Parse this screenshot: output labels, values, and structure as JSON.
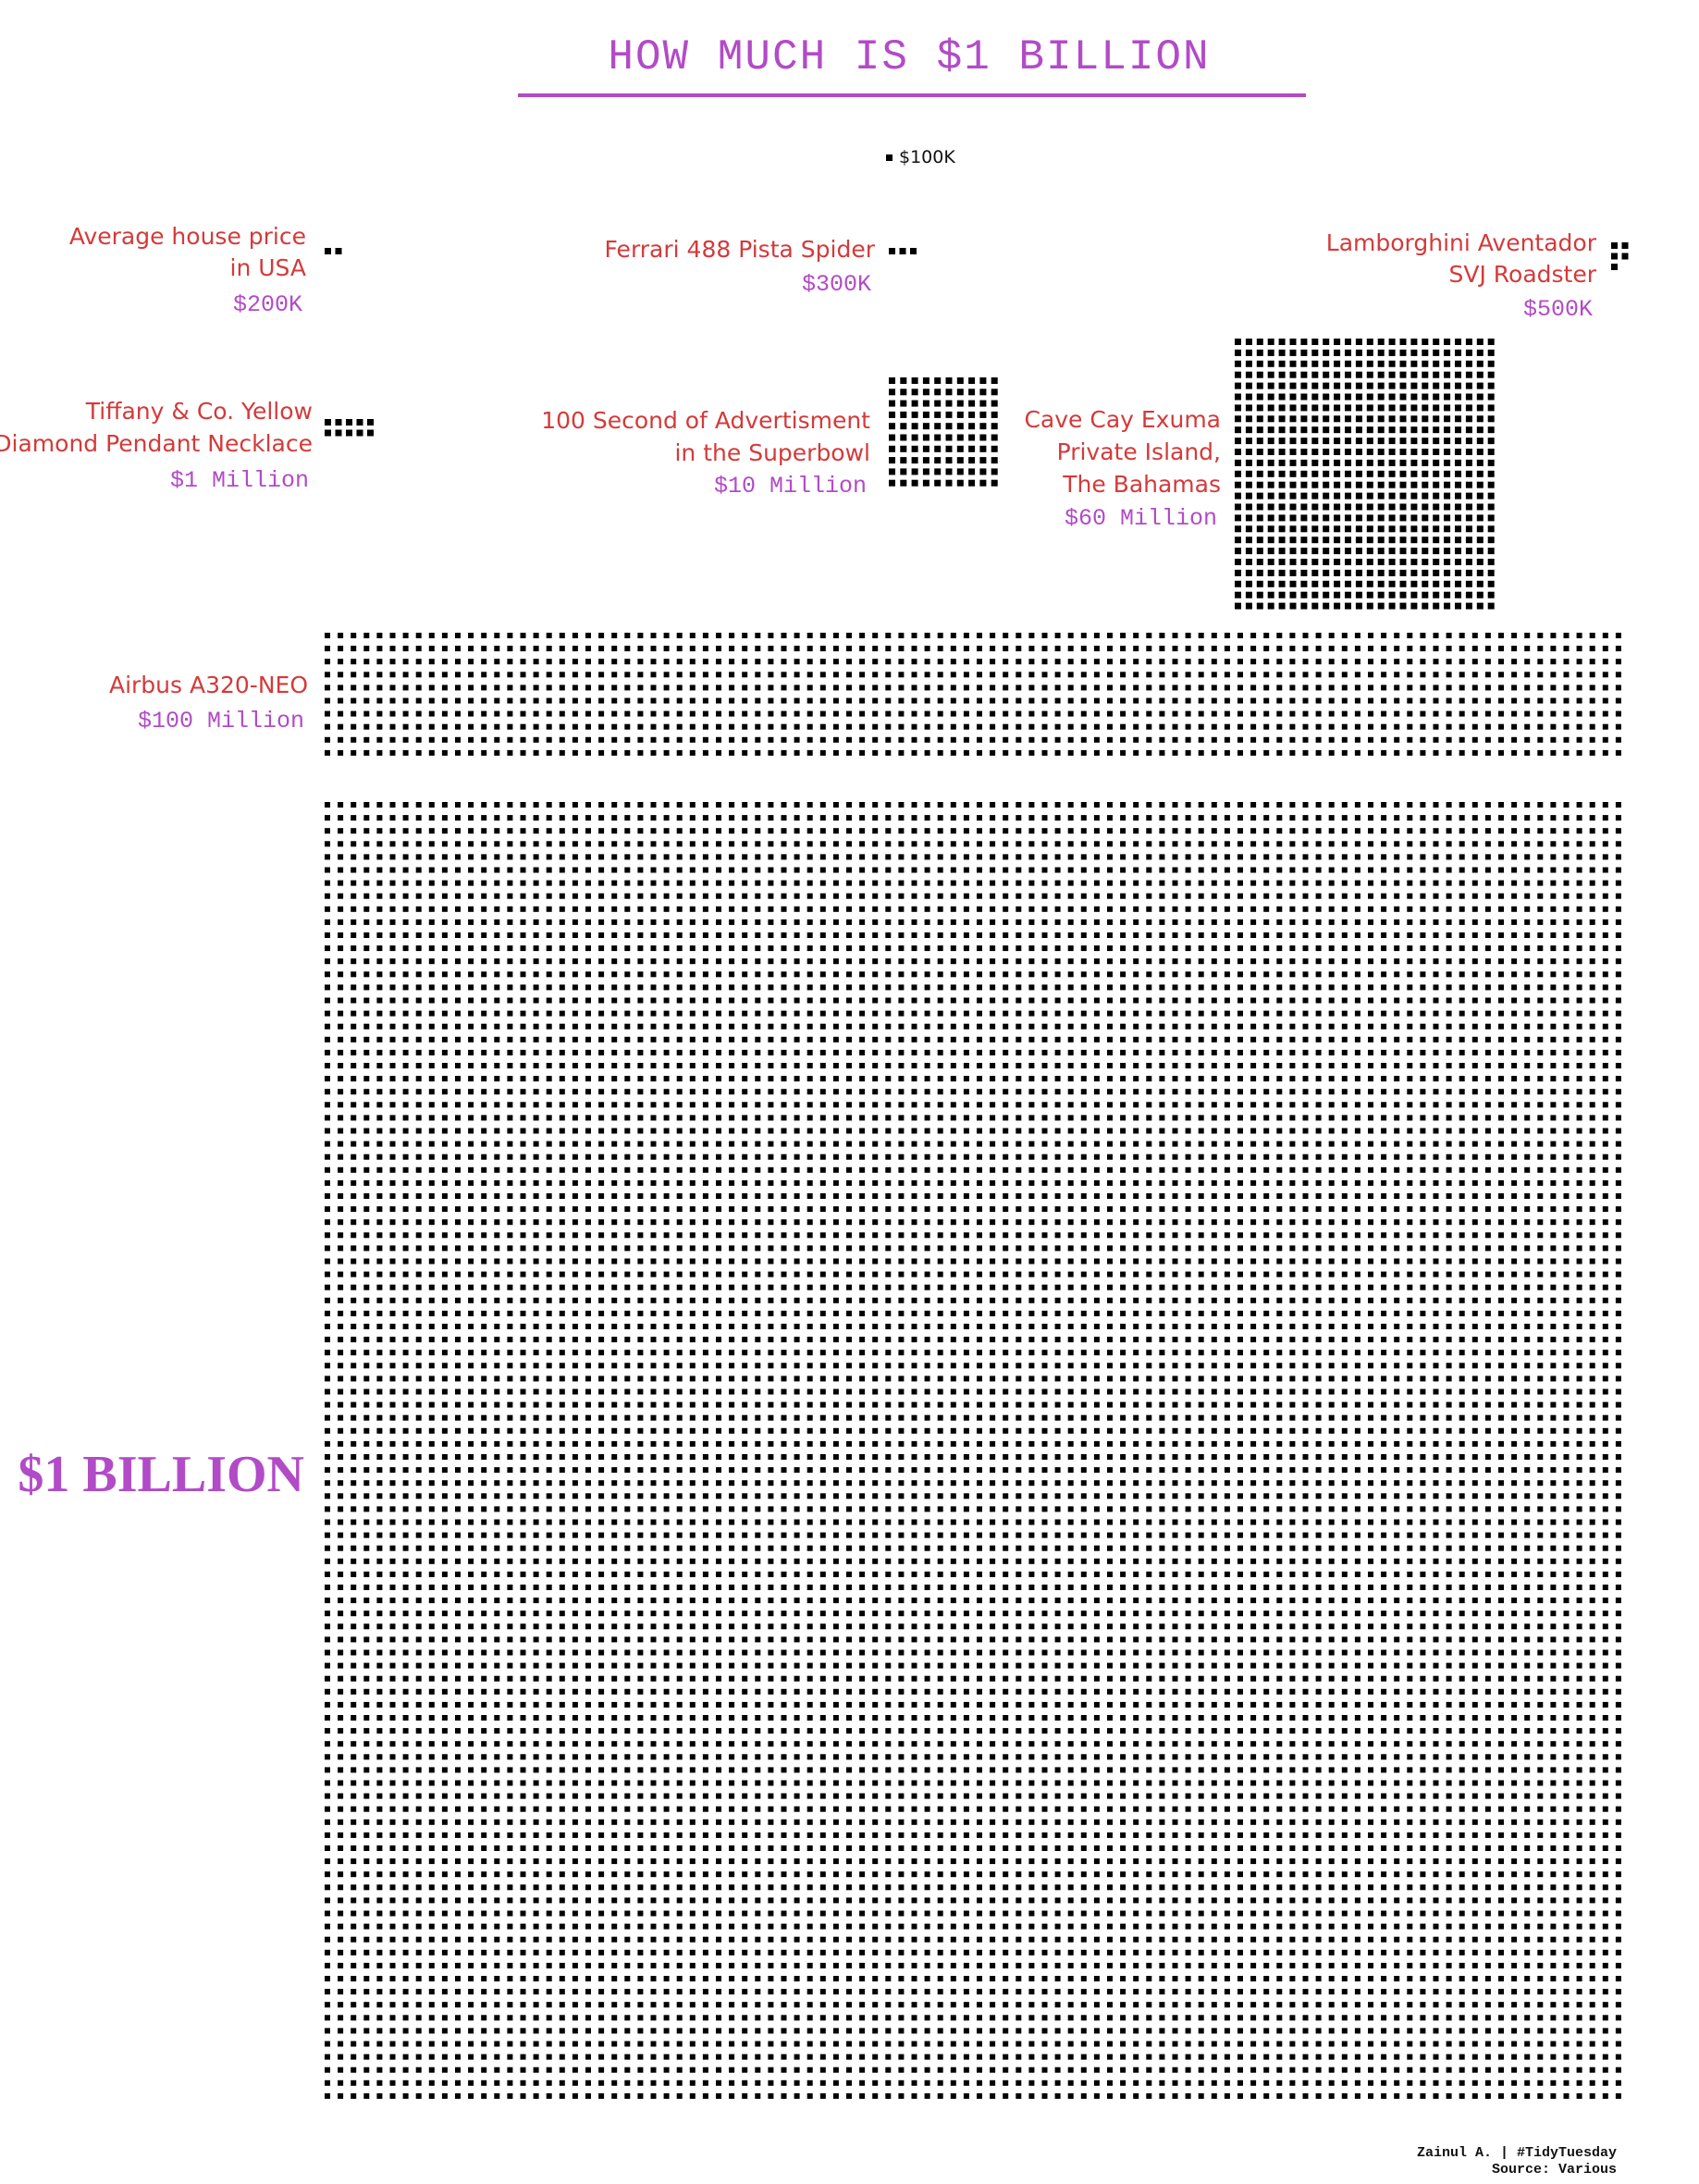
{
  "chart_data": {
    "type": "waffle",
    "title": "HOW MUCH IS $1 BILLION",
    "unit": {
      "label": "$100K",
      "value_usd": 100000
    },
    "items": [
      {
        "id": "house",
        "label": "Average house price in USA",
        "label_lines": [
          "Average house price",
          "in  USA"
        ],
        "value_text": "$200K",
        "value_usd": 200000,
        "squares": 2
      },
      {
        "id": "ferrari",
        "label": "Ferrari 488 Pista Spider",
        "label_lines": [
          "Ferrari 488 Pista Spider"
        ],
        "value_text": "$300K",
        "value_usd": 300000,
        "squares": 3
      },
      {
        "id": "lamborghini",
        "label": "Lamborghini Aventador SVJ Roadster",
        "label_lines": [
          "Lamborghini Aventador",
          "SVJ Roadster"
        ],
        "value_text": "$500K",
        "value_usd": 500000,
        "squares": 5
      },
      {
        "id": "tiffany",
        "label": "Tiffany & Co. Yellow Diamond Pendant Necklace",
        "label_lines": [
          "Tiffany & Co. Yellow",
          "Diamond Pendant Necklace"
        ],
        "value_text": "$1 Million",
        "value_usd": 1000000,
        "squares": 10
      },
      {
        "id": "superbowl",
        "label": "100 Second of Advertisment in the Superbowl",
        "label_lines": [
          "100 Second of Advertisment",
          "in the Superbowl"
        ],
        "value_text": "$10 Million",
        "value_usd": 10000000,
        "squares": 100
      },
      {
        "id": "island",
        "label": "Cave Cay Exuma Private Island, The Bahamas",
        "label_lines": [
          "Cave Cay Exuma",
          "Private Island,",
          "The Bahamas"
        ],
        "value_text": "$60 Million",
        "value_usd": 60000000,
        "squares": 600
      },
      {
        "id": "airbus",
        "label": "Airbus A320-NEO",
        "label_lines": [
          "Airbus A320-NEO"
        ],
        "value_text": "$100 Million",
        "value_usd": 100000000,
        "squares": 1000
      },
      {
        "id": "billion",
        "label": "$1 BILLION",
        "label_lines": [
          "$1 BILLION"
        ],
        "value_text": "",
        "value_usd": 1000000000,
        "squares": 10000
      }
    ]
  },
  "credits": {
    "line1": "Zainul A. | #TidyTuesday",
    "line2": "Source: Various"
  },
  "colors": {
    "title": "#b24bc7",
    "label": "#d43a3a",
    "value": "#b24bc7",
    "square": "#000000"
  }
}
